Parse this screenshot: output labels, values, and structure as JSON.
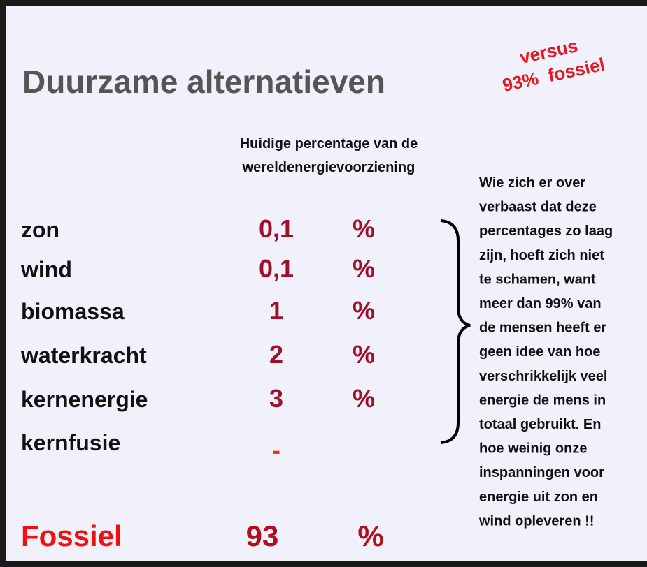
{
  "title": "Duurzame alternatieven",
  "annotation": [
    "versus",
    "93%  fossiel"
  ],
  "column_header": [
    "Huidige percentage van de",
    "wereldenergievoorziening"
  ],
  "rows": [
    {
      "label": "zon",
      "value": "0,1",
      "unit": "%"
    },
    {
      "label": "wind",
      "value": "0,1",
      "unit": "%"
    },
    {
      "label": "biomassa",
      "value": "1",
      "unit": "%"
    },
    {
      "label": "waterkracht",
      "value": "2",
      "unit": "%"
    },
    {
      "label": "kernenergie",
      "value": "3",
      "unit": "%"
    },
    {
      "label": "kernfusie",
      "value": "-"
    }
  ],
  "total": {
    "label": "Fossiel",
    "value": "93",
    "unit": "%"
  },
  "note": [
    "Wie zich er over",
    "verbaast dat deze",
    "percentages zo laag",
    "zijn, hoeft zich niet",
    "te schamen, want",
    "meer dan 99% van",
    "de mensen heeft er",
    "geen idee van hoe",
    "verschrikkelijk veel",
    "energie de mens in",
    "totaal gebruikt. En",
    "hoe weinig onze",
    "inspanningen voor",
    "energie uit zon en",
    "wind opleveren !!"
  ]
}
